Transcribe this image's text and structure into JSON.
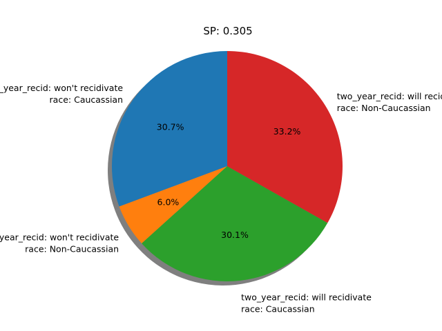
{
  "chart_data": {
    "type": "pie",
    "title": "SP: 0.305",
    "slices": [
      {
        "label": [
          "two_year_recid: won't recidivate",
          "race: Caucassian"
        ],
        "value": 30.7,
        "pct_label": "30.7%",
        "color": "#1f77b4"
      },
      {
        "label": [
          "two_year_recid: won't recidivate",
          "race: Non-Caucassian"
        ],
        "value": 6.0,
        "pct_label": "6.0%",
        "color": "#ff7f0e"
      },
      {
        "label": [
          "two_year_recid: will recidivate",
          "race: Caucassian"
        ],
        "value": 30.1,
        "pct_label": "30.1%",
        "color": "#2ca02c"
      },
      {
        "label": [
          "two_year_recid: will recidivate",
          "race: Non-Caucassian"
        ],
        "value": 33.2,
        "pct_label": "33.2%",
        "color": "#d62728"
      }
    ],
    "start_angle": "top",
    "direction": "counterclockwise",
    "shadow": true
  }
}
